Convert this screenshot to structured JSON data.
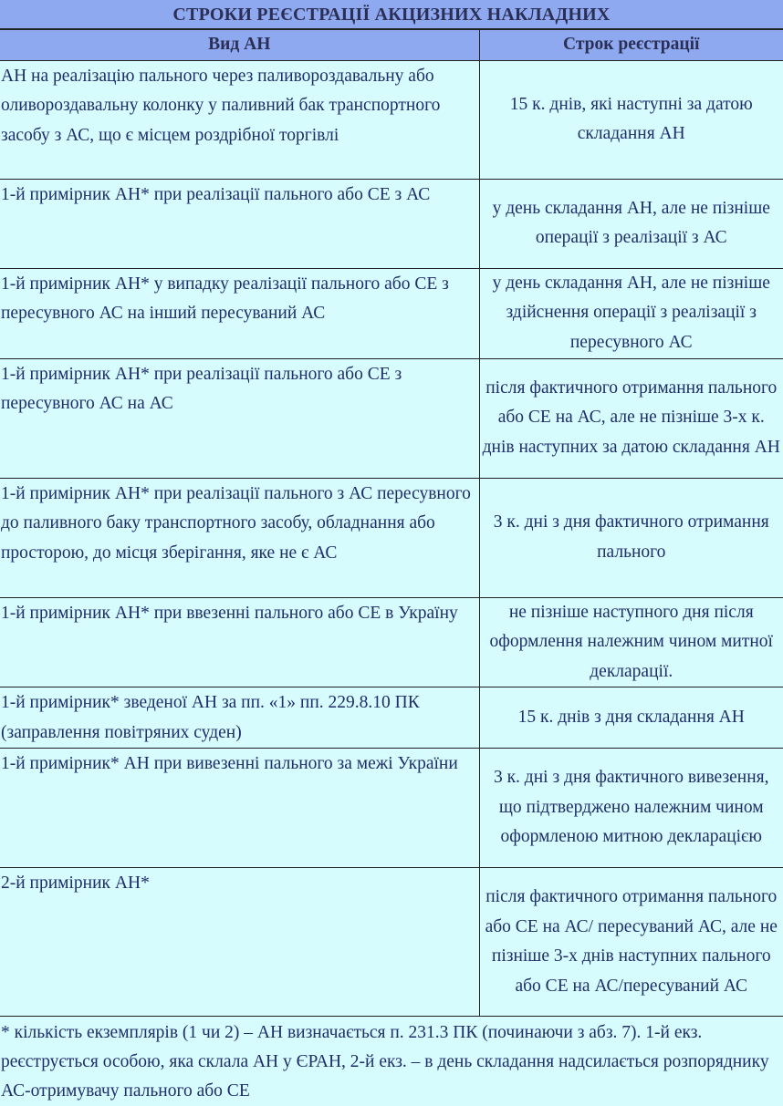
{
  "title": "СТРОКИ РЕЄСТРАЦІЇ АКЦИЗНИХ НАКЛАДНИХ",
  "headers": {
    "type": "Вид АН",
    "term": "Строк реєстрації"
  },
  "rows": [
    {
      "type": "АН на реалізацію пального через паливороздавальну або оливороздавальну колонку у паливний бак транспортного засобу з АС, що є місцем роздрібної торгівлі",
      "term": "15 к. днів, які наступні за датою складання АН"
    },
    {
      "type": "1-й примірник АН* при реалізації пального або СЕ з АС",
      "term": "у день складання АН, але не пізніше операції з реалізації з АС"
    },
    {
      "type": "1-й примірник АН* у випадку реалізації пального або СЕ з пересувного АС на інший пересуваний АС",
      "term": "у день складання АН, але не пізніше здійснення операції з реалізації з пересувного АС"
    },
    {
      "type": "1-й примірник АН* при реалізації пального або СЕ з пересувного АС на АС",
      "term": "після фактичного отримання пального або СЕ на АС, але не пізніше 3-х к. днів наступних за датою складання АН"
    },
    {
      "type": "1-й примірник АН* при реалізації пального з АС пересувного до паливного баку транспортного засобу, обладнання або просторою, до місця зберігання, яке не є АС",
      "term": "3 к. дні з дня фактичного отримання пального"
    },
    {
      "type": "1-й примірник АН* при ввезенні пального або СЕ в Україну",
      "term": "не пізніше наступного дня після оформлення належним чином митної декларації."
    },
    {
      "type": "1-й примірник* зведеної АН за пп. «1» пп. 229.8.10 ПК (заправлення повітряних суден)",
      "term": "15 к. днів з дня складання АН"
    },
    {
      "type": "1-й примірник* АН при вивезенні пального за межі України",
      "term": "3 к. дні з дня фактичного вивезення, що підтверджено належним чином оформленою митною декларацією"
    },
    {
      "type": "2-й примірник АН*",
      "term": "після фактичного отримання пального або СЕ на АС/ пересуваний АС, але не пізніше 3-х днів наступних пального або СЕ на АС/пересуваний АС"
    }
  ],
  "footnote": "* кількість екземплярів (1 чи 2) – АН визначається п. 231.3 ПК (починаючи з абз. 7). 1-й екз. реєструється особою, яка склала АН у ЄРАН, 2-й екз. – в день складання надсилається розпоряднику АС-отримувачу пального або СЕ"
}
